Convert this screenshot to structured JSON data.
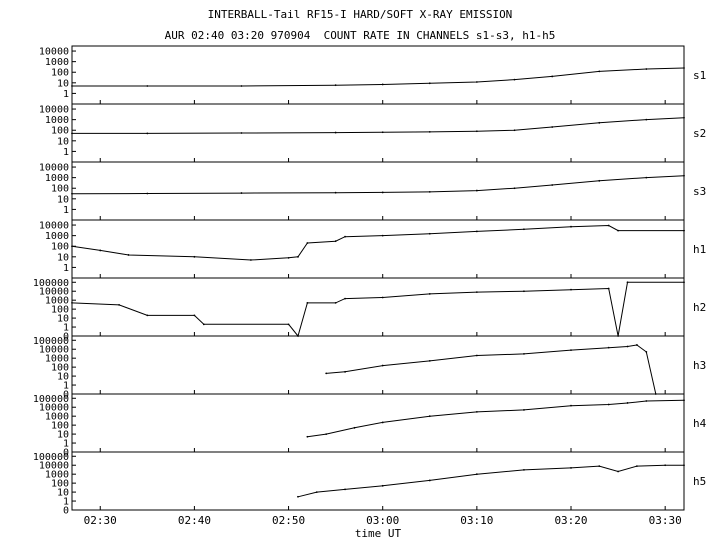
{
  "title": "INTERBALL-Tail RF15-I HARD/SOFT X-RAY EMISSION",
  "subtitle": "AUR 02:40 03:20 970904  COUNT RATE IN CHANNELS s1-s3, h1-h5",
  "chart_data": {
    "type": "line",
    "title": "INTERBALL-Tail RF15-I HARD/SOFT X-RAY EMISSION",
    "subtitle": "AUR 02:40 03:20 970904  COUNT RATE IN CHANNELS s1-s3, h1-h5",
    "xlabel": "time UT",
    "x_range": [
      "02:27",
      "03:32"
    ],
    "x_ticks": [
      "02:30",
      "02:40",
      "02:50",
      "03:00",
      "03:10",
      "03:20",
      "03:30"
    ],
    "y_scale": "log",
    "grid": false,
    "series": [
      {
        "name": "s1",
        "y_ticks": [
          "10000",
          "1000",
          "100",
          "10",
          "1"
        ],
        "ylim": [
          0.1,
          30000
        ],
        "x": [
          "02:27",
          "02:35",
          "02:45",
          "02:55",
          "03:00",
          "03:05",
          "03:10",
          "03:14",
          "03:18",
          "03:23",
          "03:28",
          "03:32"
        ],
        "values": [
          5,
          5,
          5,
          6,
          7,
          9,
          12,
          20,
          40,
          120,
          200,
          250
        ]
      },
      {
        "name": "s2",
        "y_ticks": [
          "10000",
          "1000",
          "100",
          "10",
          "1"
        ],
        "ylim": [
          0.1,
          30000
        ],
        "x": [
          "02:27",
          "02:35",
          "02:45",
          "02:55",
          "03:00",
          "03:05",
          "03:10",
          "03:14",
          "03:18",
          "03:23",
          "03:28",
          "03:32"
        ],
        "values": [
          50,
          50,
          55,
          60,
          65,
          70,
          80,
          100,
          200,
          500,
          1000,
          1500
        ]
      },
      {
        "name": "s3",
        "y_ticks": [
          "10000",
          "1000",
          "100",
          "10",
          "1"
        ],
        "ylim": [
          0.1,
          30000
        ],
        "x": [
          "02:27",
          "02:35",
          "02:45",
          "02:55",
          "03:00",
          "03:05",
          "03:10",
          "03:14",
          "03:18",
          "03:23",
          "03:28",
          "03:32"
        ],
        "values": [
          30,
          32,
          35,
          38,
          40,
          45,
          60,
          100,
          200,
          500,
          1000,
          1500
        ]
      },
      {
        "name": "h1",
        "y_ticks": [
          "10000",
          "1000",
          "100",
          "10",
          "1"
        ],
        "ylim": [
          0.1,
          30000
        ],
        "x": [
          "02:27",
          "02:30",
          "02:33",
          "02:40",
          "02:46",
          "02:50",
          "02:51",
          "02:52",
          "02:55",
          "02:56",
          "03:00",
          "03:05",
          "03:10",
          "03:15",
          "03:20",
          "03:24",
          "03:25",
          "03:32"
        ],
        "values": [
          100,
          40,
          15,
          10,
          5,
          8,
          10,
          200,
          300,
          800,
          1000,
          1500,
          2500,
          4000,
          7000,
          9000,
          3000,
          3000
        ]
      },
      {
        "name": "h2",
        "y_ticks": [
          "100000",
          "10000",
          "1000",
          "100",
          "10",
          "1",
          "0"
        ],
        "ylim": [
          0.1,
          300000
        ],
        "x": [
          "02:27",
          "02:32",
          "02:35",
          "02:40",
          "02:41",
          "02:50",
          "02:51",
          "02:52",
          "02:55",
          "02:56",
          "03:00",
          "03:05",
          "03:10",
          "03:15",
          "03:20",
          "03:24",
          "03:25",
          "03:26",
          "03:32"
        ],
        "values": [
          500,
          300,
          20,
          20,
          2,
          2,
          0.1,
          500,
          500,
          1500,
          2000,
          5000,
          8000,
          10000,
          15000,
          20000,
          0.1,
          100000,
          100000
        ]
      },
      {
        "name": "h3",
        "y_ticks": [
          "100000",
          "10000",
          "1000",
          "100",
          "10",
          "1",
          "0"
        ],
        "ylim": [
          0.1,
          300000
        ],
        "x": [
          "02:54",
          "02:56",
          "03:00",
          "03:05",
          "03:10",
          "03:15",
          "03:20",
          "03:24",
          "03:26",
          "03:27",
          "03:28",
          "03:29"
        ],
        "values": [
          20,
          30,
          150,
          500,
          2000,
          3000,
          8000,
          15000,
          20000,
          30000,
          5000,
          0.1
        ]
      },
      {
        "name": "h4",
        "y_ticks": [
          "100000",
          "10000",
          "1000",
          "100",
          "10",
          "1",
          "0"
        ],
        "ylim": [
          0.1,
          300000
        ],
        "x": [
          "02:52",
          "02:54",
          "02:57",
          "03:00",
          "03:05",
          "03:10",
          "03:15",
          "03:20",
          "03:24",
          "03:26",
          "03:28",
          "03:32"
        ],
        "values": [
          5,
          10,
          50,
          200,
          1000,
          3000,
          5000,
          15000,
          20000,
          30000,
          50000,
          60000
        ]
      },
      {
        "name": "h5",
        "y_ticks": [
          "100000",
          "10000",
          "1000",
          "100",
          "10",
          "1",
          "0"
        ],
        "ylim": [
          0.1,
          300000
        ],
        "x": [
          "02:51",
          "02:53",
          "02:56",
          "03:00",
          "03:05",
          "03:10",
          "03:15",
          "03:20",
          "03:23",
          "03:25",
          "03:27",
          "03:30",
          "03:32"
        ],
        "values": [
          3,
          10,
          20,
          50,
          200,
          1000,
          3000,
          5000,
          8000,
          2000,
          8000,
          10000,
          10000
        ]
      }
    ]
  }
}
